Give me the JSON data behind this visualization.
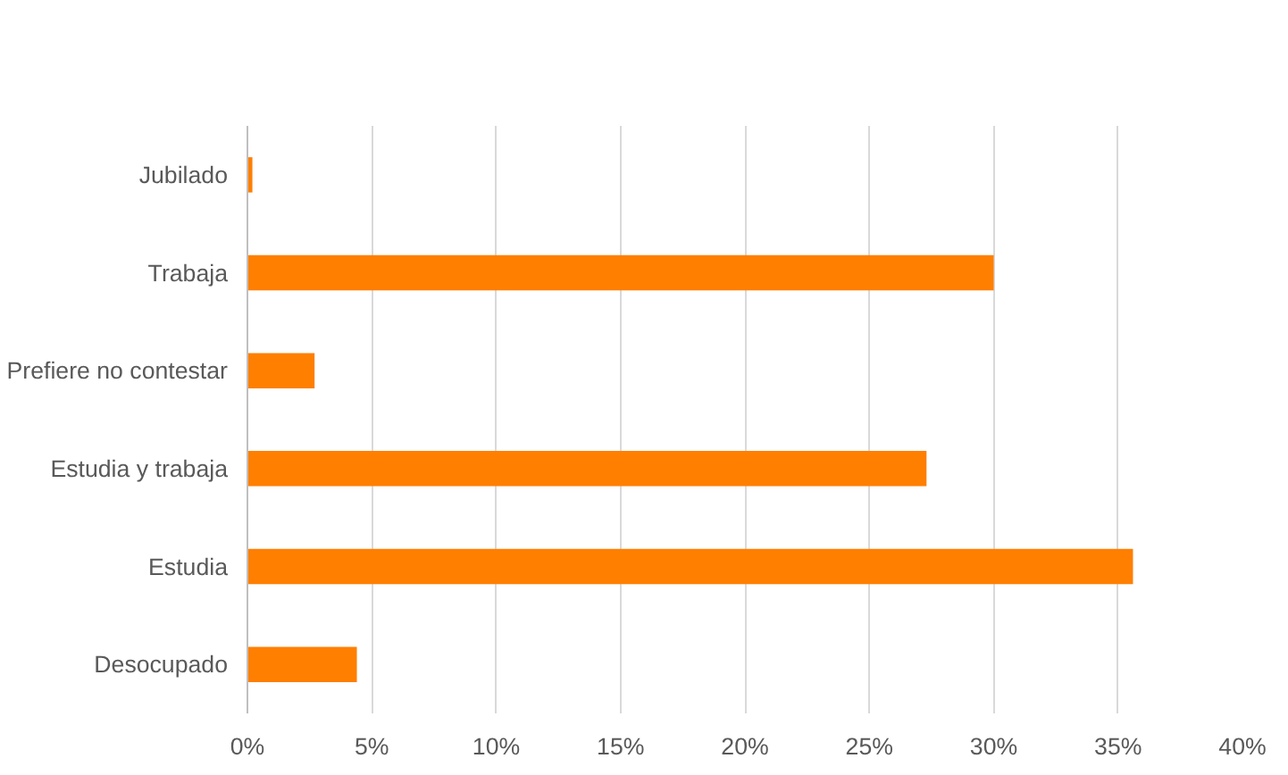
{
  "chart_data": {
    "type": "bar",
    "orientation": "horizontal",
    "categories": [
      "Jubilado",
      "Trabaja",
      "Prefiere no contestar",
      "Estudia y trabaja",
      "Estudia",
      "Desocupado"
    ],
    "values": [
      0.2,
      30,
      2.7,
      27.3,
      35.6,
      4.4
    ],
    "color": "#ff7f00",
    "xlim": [
      0,
      40
    ],
    "xticks": [
      {
        "value": 0,
        "label": "0%"
      },
      {
        "value": 5,
        "label": "5%"
      },
      {
        "value": 10,
        "label": "10%"
      },
      {
        "value": 15,
        "label": "15%"
      },
      {
        "value": 20,
        "label": "20%"
      },
      {
        "value": 25,
        "label": "25%"
      },
      {
        "value": 30,
        "label": "30%"
      },
      {
        "value": 35,
        "label": "35%"
      },
      {
        "value": 40,
        "label": "40%"
      }
    ],
    "grid": "x"
  }
}
